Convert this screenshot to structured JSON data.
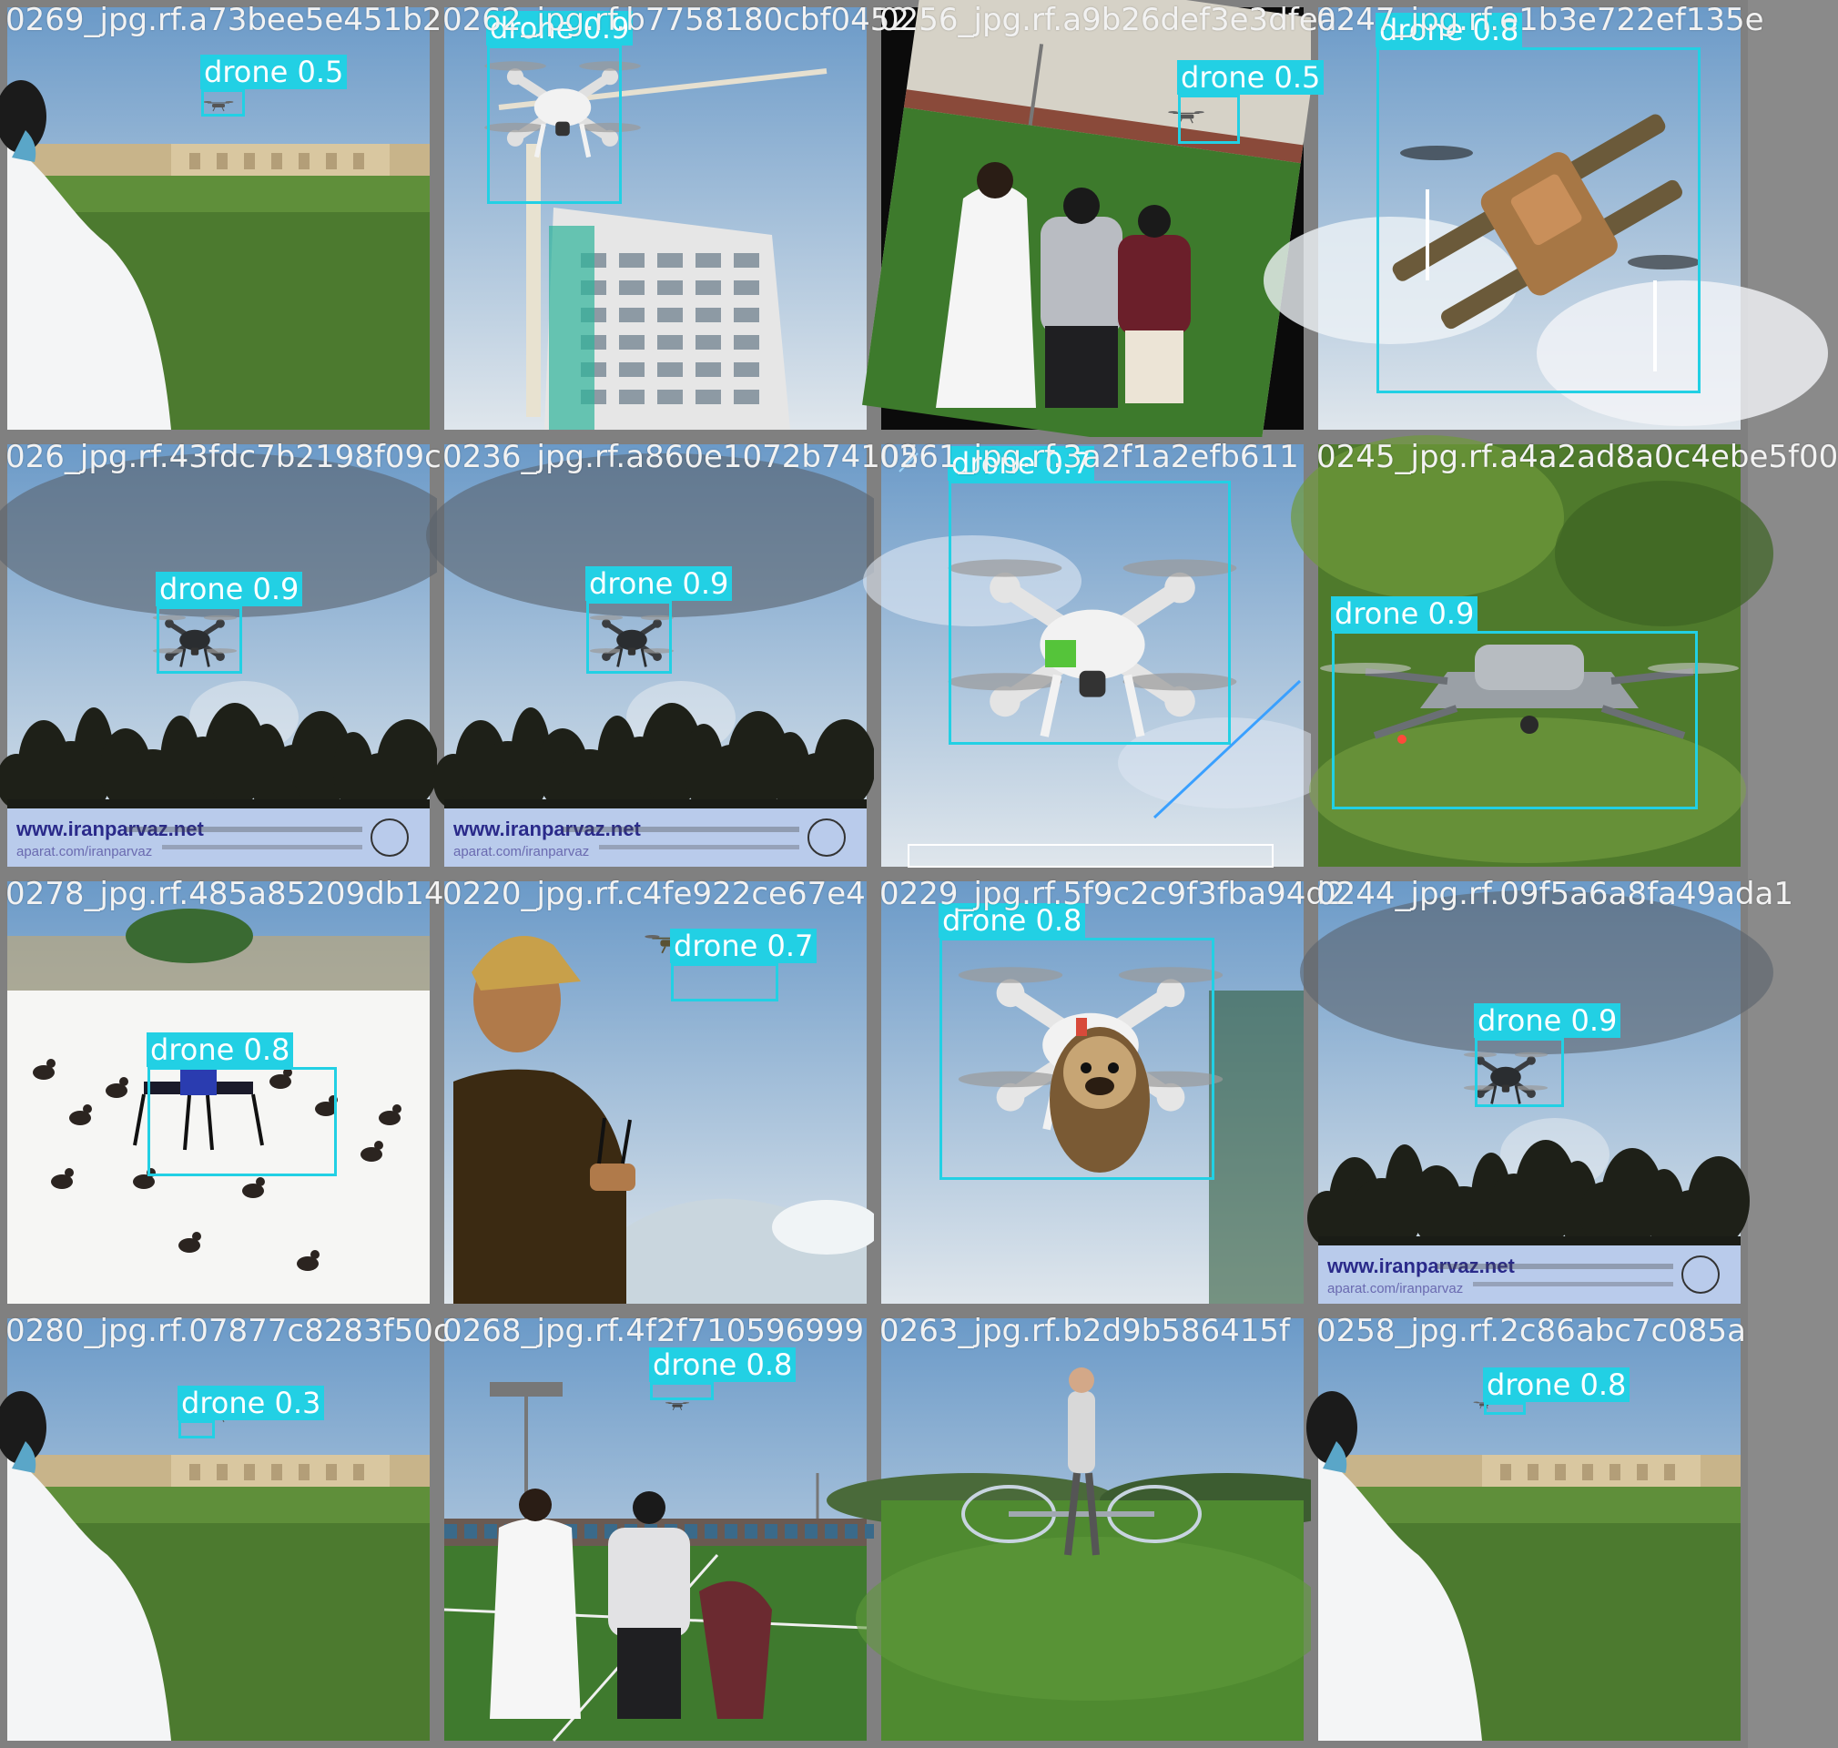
{
  "colors": {
    "box": "#22d0e4",
    "label_text": "#ffffff",
    "grid_bg": "#8a8a8a"
  },
  "tiles": [
    {
      "filename": "0269_jpg.rf.a73bee5e451b2",
      "scene": "field-man-left",
      "detections": [
        {
          "label": "drone 0.5",
          "name": "drone"
        }
      ]
    },
    {
      "filename": "0262_jpg.rf.b7758180cbf0452",
      "scene": "building-drone",
      "detections": [
        {
          "label": "drone 0.9",
          "name": "drone"
        }
      ]
    },
    {
      "filename": "0256_jpg.rf.a9b26def3e3dfea",
      "scene": "rotated-field-people",
      "detections": [
        {
          "label": "drone 0.5",
          "name": "drone"
        }
      ]
    },
    {
      "filename": "0247_jpg.rf.e1b3e722ef135e",
      "scene": "cargo-drone-clouds",
      "detections": [
        {
          "label": "drone 0.8",
          "name": "drone"
        }
      ]
    },
    {
      "filename": "026_jpg.rf.43fdc7b2198f09c",
      "scene": "cloudy-sky-banner",
      "banner": {
        "site": "www.iranparvaz.net",
        "sub": "aparat.com/iranparvaz"
      },
      "detections": [
        {
          "label": "drone 0.9",
          "name": "drone"
        }
      ]
    },
    {
      "filename": "0236_jpg.rf.a860e1072b74105",
      "scene": "cloudy-sky-banner",
      "banner": {
        "site": "www.iranparvaz.net",
        "sub": "aparat.com/iranparvaz"
      },
      "detections": [
        {
          "label": "drone 0.9",
          "name": "drone"
        }
      ]
    },
    {
      "filename": "0261_jpg.rf.3a2f1a2efb611",
      "scene": "phantom-sky",
      "detections": [
        {
          "label": "drone 0.7",
          "name": "drone"
        }
      ]
    },
    {
      "filename": "0245_jpg.rf.a4a2ad8a0c4ebe5f00",
      "scene": "mavic-grass",
      "detections": [
        {
          "label": "drone 0.9",
          "name": "drone"
        }
      ]
    },
    {
      "filename": "0278_jpg.rf.485a85209db14",
      "scene": "snow-birds",
      "detections": [
        {
          "label": "drone 0.8",
          "name": "drone"
        }
      ]
    },
    {
      "filename": "0220_jpg.rf.c4fe922ce67e4",
      "scene": "man-cap-remote",
      "detections": [
        {
          "label": "drone 0.7",
          "name": "drone"
        }
      ]
    },
    {
      "filename": "0229_jpg.rf.5f9c2c9f3fba94d2",
      "scene": "pug-drone",
      "detections": [
        {
          "label": "drone 0.8",
          "name": "drone"
        }
      ]
    },
    {
      "filename": "0244_jpg.rf.09f5a6a8fa49ada1",
      "scene": "cloudy-sky-banner",
      "banner": {
        "site": "www.iranparvaz.net",
        "sub": "aparat.com/iranparvaz"
      },
      "detections": [
        {
          "label": "drone 0.9",
          "name": "drone"
        }
      ]
    },
    {
      "filename": "0280_jpg.rf.07877c8283f50c",
      "scene": "field-man-left",
      "detections": [
        {
          "label": "drone 0.3",
          "name": "drone"
        }
      ]
    },
    {
      "filename": "0268_jpg.rf.4f2f710596999",
      "scene": "stadium-people",
      "detections": [
        {
          "label": "drone 0.8",
          "name": "drone"
        }
      ]
    },
    {
      "filename": "0263_jpg.rf.b2d9b586415f",
      "scene": "hoverbike-grass",
      "detections": []
    },
    {
      "filename": "0258_jpg.rf.2c86abc7c085a",
      "scene": "field-man-left-2",
      "detections": [
        {
          "label": "drone 0.8",
          "name": "drone"
        }
      ]
    }
  ]
}
